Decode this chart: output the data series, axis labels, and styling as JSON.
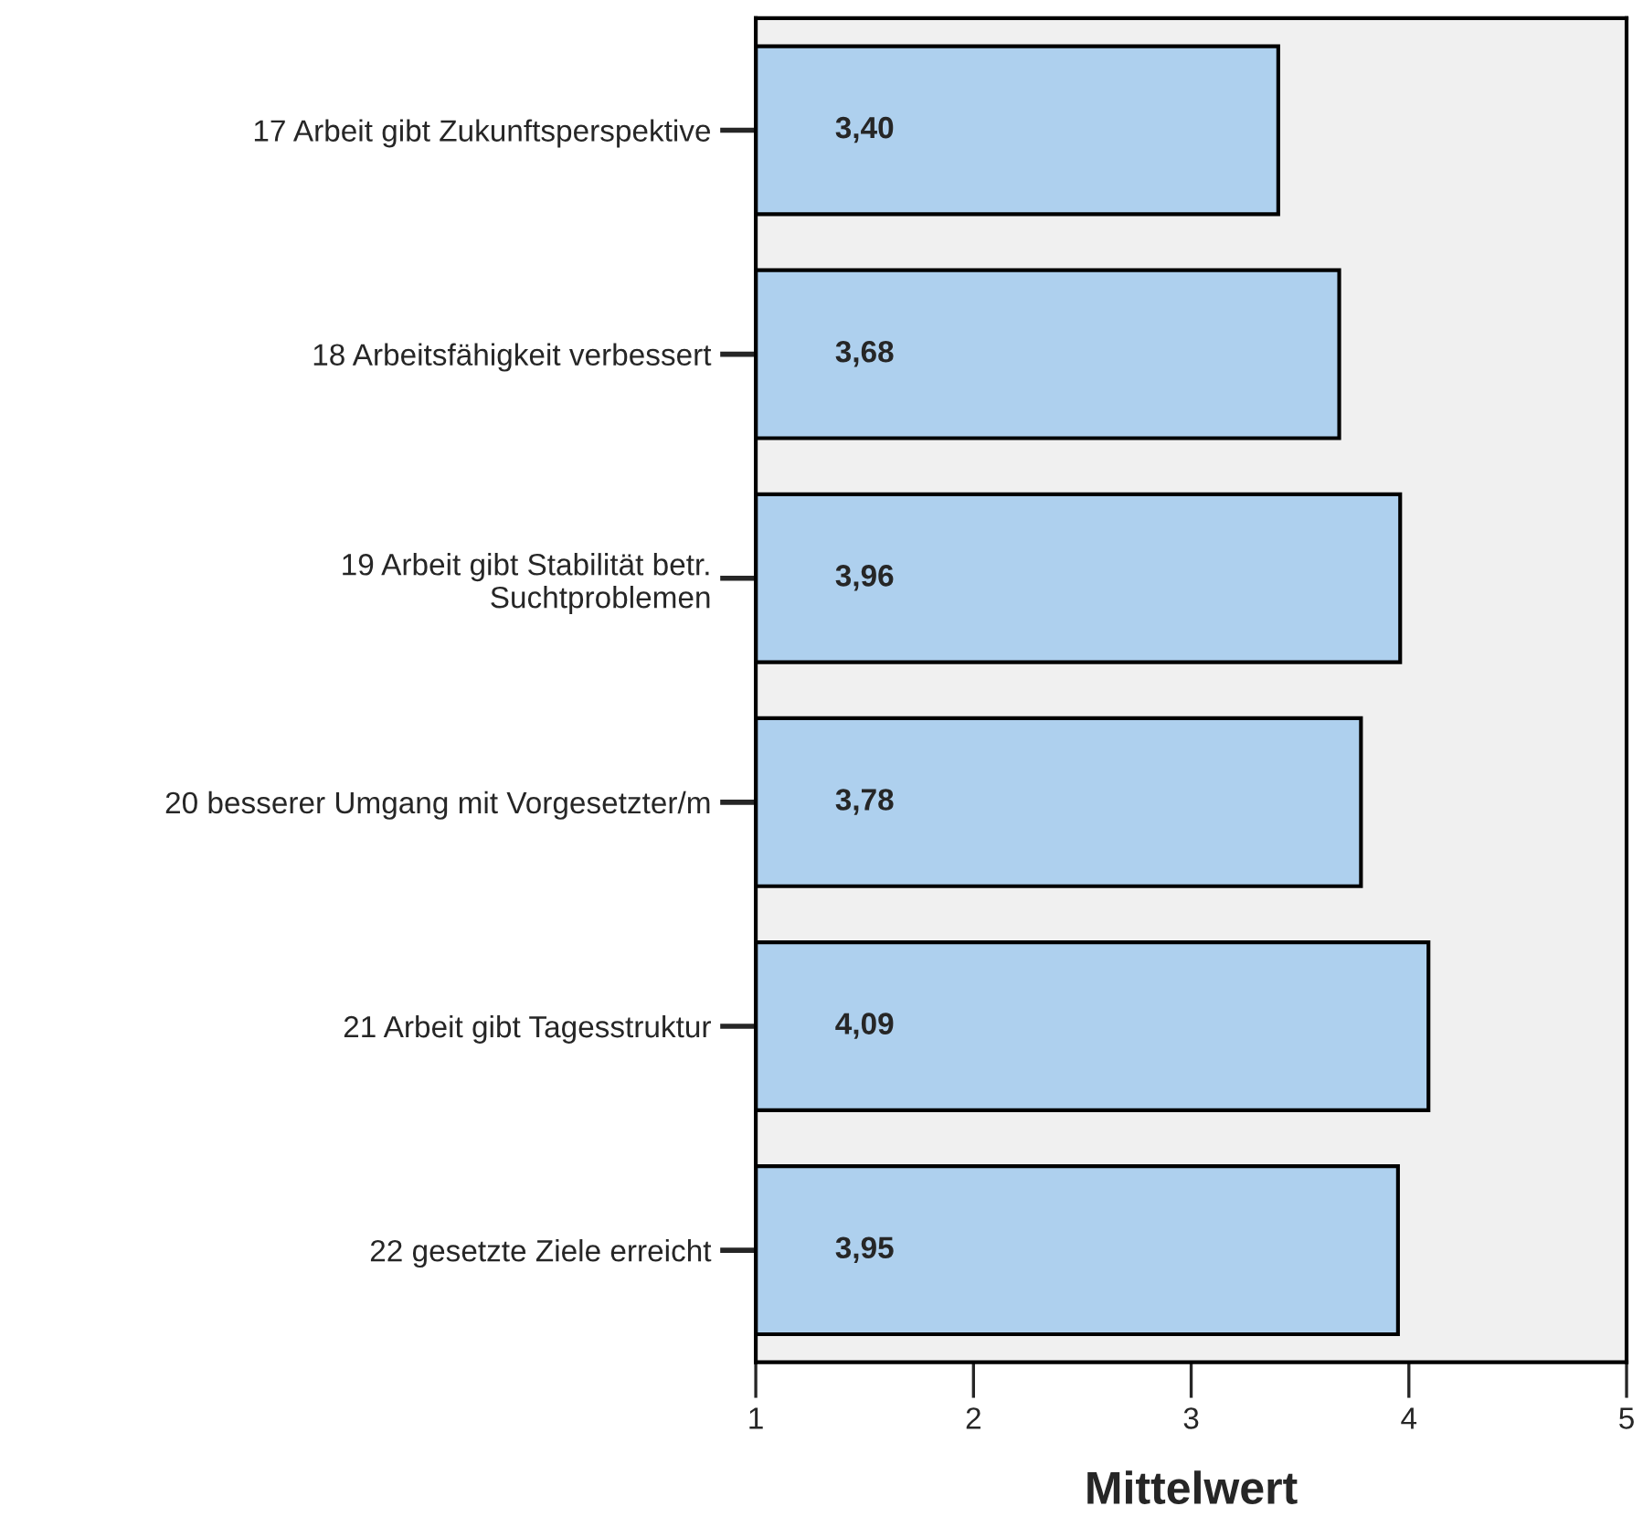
{
  "chart_data": {
    "type": "bar",
    "orientation": "horizontal",
    "xlabel": "Mittelwert",
    "categories": [
      "17 Arbeit gibt Zukunftsperspektive",
      "18 Arbeitsfähigkeit verbessert",
      "19 Arbeit gibt Stabilität betr.\nSuchtproblemen",
      "20 besserer Umgang mit Vorgesetzter/m",
      "21 Arbeit gibt Tagesstruktur",
      "22 gesetzte Ziele erreicht"
    ],
    "values": [
      3.4,
      3.68,
      3.96,
      3.78,
      4.09,
      3.95
    ],
    "value_labels": [
      "3,40",
      "3,68",
      "3,96",
      "3,78",
      "4,09",
      "3,95"
    ],
    "color": "#aed0ee",
    "xlim": [
      1,
      5
    ],
    "xticks": [
      1,
      2,
      3,
      4,
      5
    ],
    "grid": false,
    "legend": false
  }
}
